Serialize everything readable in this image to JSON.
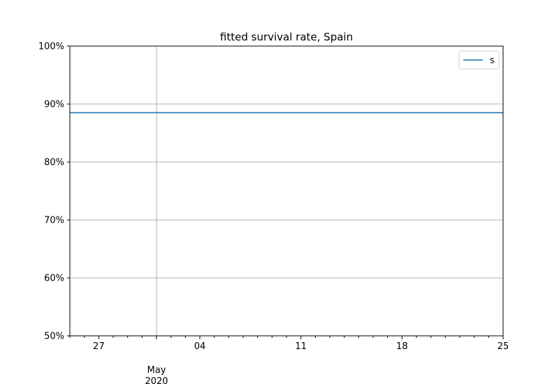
{
  "chart_data": {
    "type": "line",
    "title": "fitted survival rate, Spain",
    "xlabel": "",
    "ylabel": "",
    "x_range": [
      "2020-04-25",
      "2020-05-25"
    ],
    "ylim": [
      0.5,
      1.0
    ],
    "y_ticks": [
      0.5,
      0.6,
      0.7,
      0.8,
      0.9,
      1.0
    ],
    "y_tick_labels": [
      "50%",
      "60%",
      "70%",
      "80%",
      "90%",
      "100%"
    ],
    "x_major_ticks": [
      {
        "date": "2020-04-27",
        "label": "27"
      },
      {
        "date": "2020-05-04",
        "label": "04"
      },
      {
        "date": "2020-05-11",
        "label": "11"
      },
      {
        "date": "2020-05-18",
        "label": "18"
      },
      {
        "date": "2020-05-25",
        "label": "25"
      }
    ],
    "x_month_label": {
      "date": "2020-05-01",
      "month": "May",
      "year": "2020"
    },
    "grid": true,
    "legend_position": "top-right",
    "series": [
      {
        "name": "s",
        "color": "#1f77b4",
        "x": [
          "2020-04-25",
          "2020-05-25"
        ],
        "y": [
          0.885,
          0.885
        ]
      }
    ]
  }
}
